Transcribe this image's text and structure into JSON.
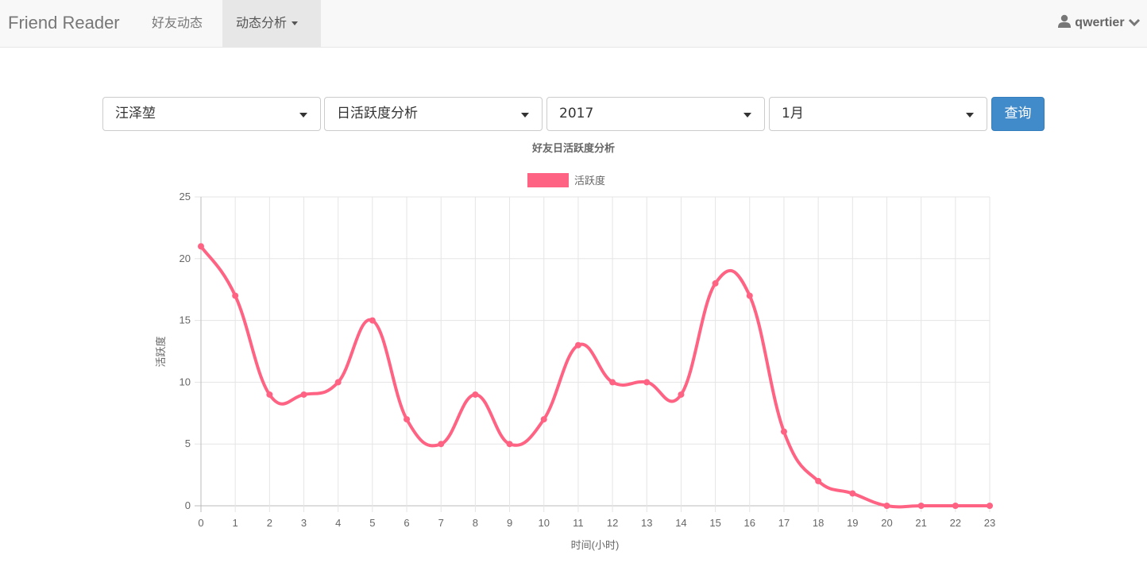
{
  "navbar": {
    "brand": "Friend Reader",
    "items": [
      {
        "label": "好友动态"
      },
      {
        "label": "动态分析"
      }
    ],
    "user": "qwertier"
  },
  "filters": {
    "friend": "汪泽堃",
    "analysis_type": "日活跃度分析",
    "year": "2017",
    "month": "1月",
    "query_button": "查询"
  },
  "chart_data": {
    "type": "line",
    "title": "好友日活跃度分析",
    "xlabel": "时间(小时)",
    "ylabel": "活跃度",
    "categories": [
      "0",
      "1",
      "2",
      "3",
      "4",
      "5",
      "6",
      "7",
      "8",
      "9",
      "10",
      "11",
      "12",
      "13",
      "14",
      "15",
      "16",
      "17",
      "18",
      "19",
      "20",
      "21",
      "22",
      "23"
    ],
    "series": [
      {
        "name": "活跃度",
        "color": "#ff6384",
        "values": [
          21,
          17,
          9,
          9,
          10,
          15,
          7,
          5,
          9,
          5,
          7,
          13,
          10,
          10,
          9,
          18,
          17,
          6,
          2,
          1,
          0,
          0,
          0,
          0
        ]
      }
    ],
    "ylim": [
      0,
      25
    ],
    "yticks": [
      "0",
      "5",
      "10",
      "15",
      "20",
      "25"
    ],
    "grid": true,
    "legend": "top"
  }
}
